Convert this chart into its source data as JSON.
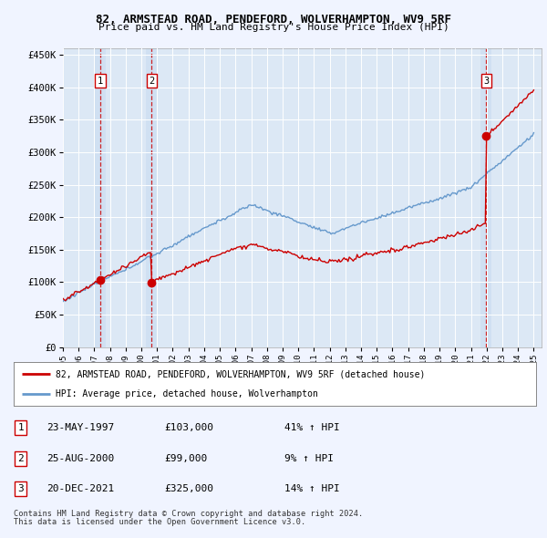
{
  "title1": "82, ARMSTEAD ROAD, PENDEFORD, WOLVERHAMPTON, WV9 5RF",
  "title2": "Price paid vs. HM Land Registry's House Price Index (HPI)",
  "background_color": "#f0f4ff",
  "plot_bg": "#dce8f5",
  "sale_dates": [
    1997.39,
    2000.65,
    2021.97
  ],
  "sale_prices": [
    103000,
    99000,
    325000
  ],
  "sale_labels": [
    "1",
    "2",
    "3"
  ],
  "legend_line1": "82, ARMSTEAD ROAD, PENDEFORD, WOLVERHAMPTON, WV9 5RF (detached house)",
  "legend_line2": "HPI: Average price, detached house, Wolverhampton",
  "table_rows": [
    [
      "1",
      "23-MAY-1997",
      "£103,000",
      "41% ↑ HPI"
    ],
    [
      "2",
      "25-AUG-2000",
      "£99,000",
      "9% ↑ HPI"
    ],
    [
      "3",
      "20-DEC-2021",
      "£325,000",
      "14% ↑ HPI"
    ]
  ],
  "footer1": "Contains HM Land Registry data © Crown copyright and database right 2024.",
  "footer2": "This data is licensed under the Open Government Licence v3.0.",
  "xmin": 1995.0,
  "xmax": 2025.5,
  "ymin": 0,
  "ymax": 460000,
  "yticks": [
    0,
    50000,
    100000,
    150000,
    200000,
    250000,
    300000,
    350000,
    400000,
    450000
  ],
  "ytick_labels": [
    "£0",
    "£50K",
    "£100K",
    "£150K",
    "£200K",
    "£250K",
    "£300K",
    "£350K",
    "£400K",
    "£450K"
  ],
  "xticks": [
    1995,
    1996,
    1997,
    1998,
    1999,
    2000,
    2001,
    2002,
    2003,
    2004,
    2005,
    2006,
    2007,
    2008,
    2009,
    2010,
    2011,
    2012,
    2013,
    2014,
    2015,
    2016,
    2017,
    2018,
    2019,
    2020,
    2021,
    2022,
    2023,
    2024,
    2025
  ],
  "red_color": "#cc0000",
  "blue_color": "#6699cc"
}
